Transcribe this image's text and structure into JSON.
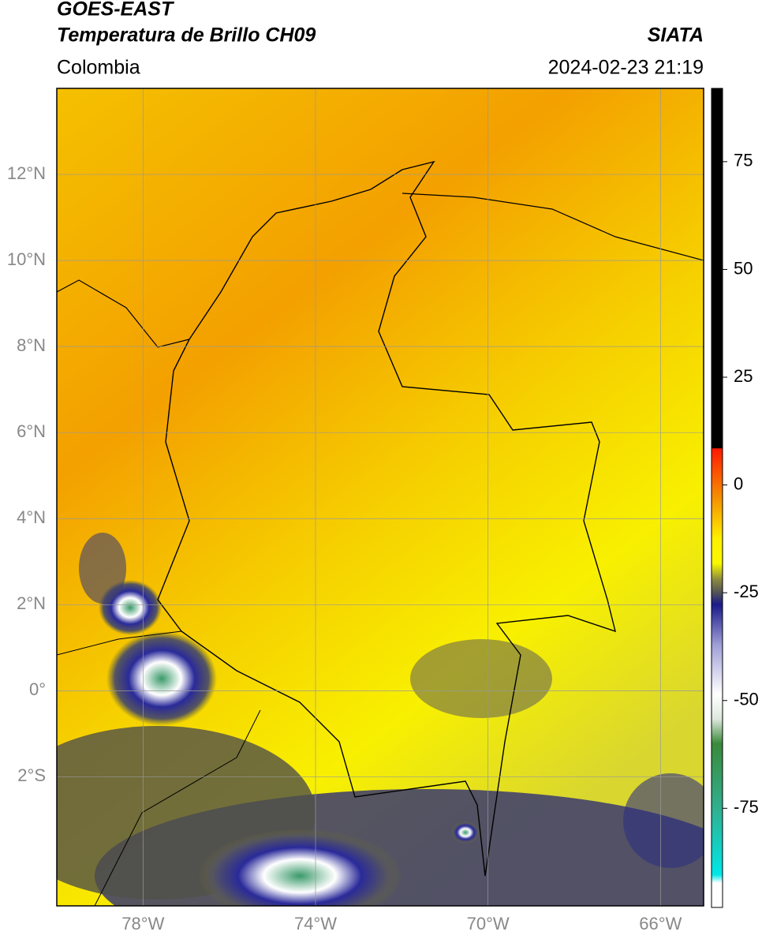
{
  "header": {
    "title": "GOES-EAST",
    "subtitle": "Temperatura de Brillo CH09",
    "region": "Colombia",
    "agency": "SIATA",
    "datetime": "2024-02-23 21:19"
  },
  "map": {
    "xlim": [
      -80,
      -65
    ],
    "ylim": [
      -5,
      14
    ],
    "xticks": [
      {
        "value": -78,
        "label": "78°W"
      },
      {
        "value": -74,
        "label": "74°W"
      },
      {
        "value": -70,
        "label": "70°W"
      },
      {
        "value": -66,
        "label": "66°W"
      }
    ],
    "yticks": [
      {
        "value": 12,
        "label": "12°N"
      },
      {
        "value": 10,
        "label": "10°N"
      },
      {
        "value": 8,
        "label": "8°N"
      },
      {
        "value": 6,
        "label": "6°N"
      },
      {
        "value": 4,
        "label": "4°N"
      },
      {
        "value": 2,
        "label": "2°N"
      },
      {
        "value": 0,
        "label": "0°"
      },
      {
        "value": -2,
        "label": "2°S"
      }
    ],
    "grid": true
  },
  "colorbar": {
    "lim": [
      -98,
      92
    ],
    "ticks": [
      75,
      50,
      25,
      0,
      -25,
      -50,
      -75
    ]
  }
}
